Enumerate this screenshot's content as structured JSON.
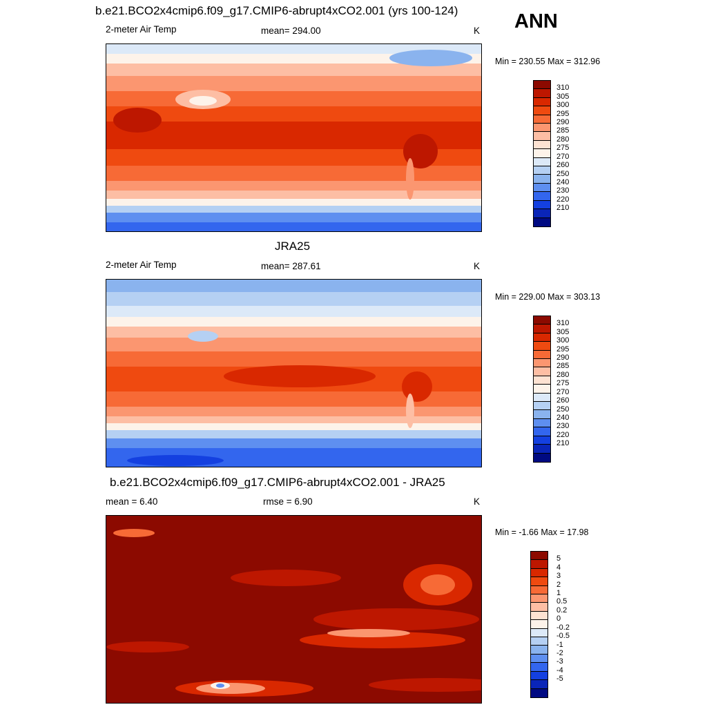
{
  "season": "ANN",
  "panels": [
    {
      "title": "b.e21.BCO2x4cmip6.f09_g17.CMIP6-abrupt4xCO2.001 (yrs 100-124)",
      "variable": "2-meter Air Temp",
      "stat": "mean= 294.00",
      "units": "K",
      "minmax": "Min = 230.55 Max = 312.96",
      "colorbar": {
        "labels": [
          "310",
          "305",
          "300",
          "295",
          "290",
          "285",
          "280",
          "275",
          "270",
          "260",
          "250",
          "240",
          "230",
          "220",
          "210"
        ],
        "colors": [
          "#8c0a00",
          "#bd1700",
          "#d92800",
          "#ef4a10",
          "#f76a36",
          "#fb9670",
          "#fdbea4",
          "#fde2d2",
          "#fdf3ea",
          "#dce9f8",
          "#b5d0f3",
          "#8ab3ee",
          "#5e8ff0",
          "#3366ee",
          "#1440e0",
          "#0a25b8",
          "#000a82"
        ]
      }
    },
    {
      "title": "JRA25",
      "variable": "2-meter Air Temp",
      "stat": "mean= 287.61",
      "units": "K",
      "minmax": "Min = 229.00 Max = 303.13",
      "colorbar": {
        "labels": [
          "310",
          "305",
          "300",
          "295",
          "290",
          "285",
          "280",
          "275",
          "270",
          "260",
          "250",
          "240",
          "230",
          "220",
          "210"
        ],
        "colors": [
          "#8c0a00",
          "#bd1700",
          "#d92800",
          "#ef4a10",
          "#f76a36",
          "#fb9670",
          "#fdbea4",
          "#fde2d2",
          "#fdf3ea",
          "#dce9f8",
          "#b5d0f3",
          "#8ab3ee",
          "#5e8ff0",
          "#3366ee",
          "#1440e0",
          "#0a25b8",
          "#000a82"
        ]
      }
    },
    {
      "title": "b.e21.BCO2x4cmip6.f09_g17.CMIP6-abrupt4xCO2.001 - JRA25",
      "stat_left": "mean =   6.40",
      "stat_mid": "rmse =   6.90",
      "units": "K",
      "minmax": "Min =  -1.66 Max =  17.98",
      "colorbar": {
        "labels": [
          "5",
          "4",
          "3",
          "2",
          "1",
          "0.5",
          "0.2",
          "0",
          "-0.2",
          "-0.5",
          "-1",
          "-2",
          "-3",
          "-4",
          "-5"
        ],
        "colors": [
          "#8c0a00",
          "#bd1700",
          "#d92800",
          "#ef4a10",
          "#f76a36",
          "#fb9670",
          "#fdbea4",
          "#fde2d2",
          "#fdf3ea",
          "#dce9f8",
          "#b5d0f3",
          "#8ab3ee",
          "#5e8ff0",
          "#3366ee",
          "#1440e0",
          "#0a25b8",
          "#000a82"
        ]
      }
    }
  ]
}
